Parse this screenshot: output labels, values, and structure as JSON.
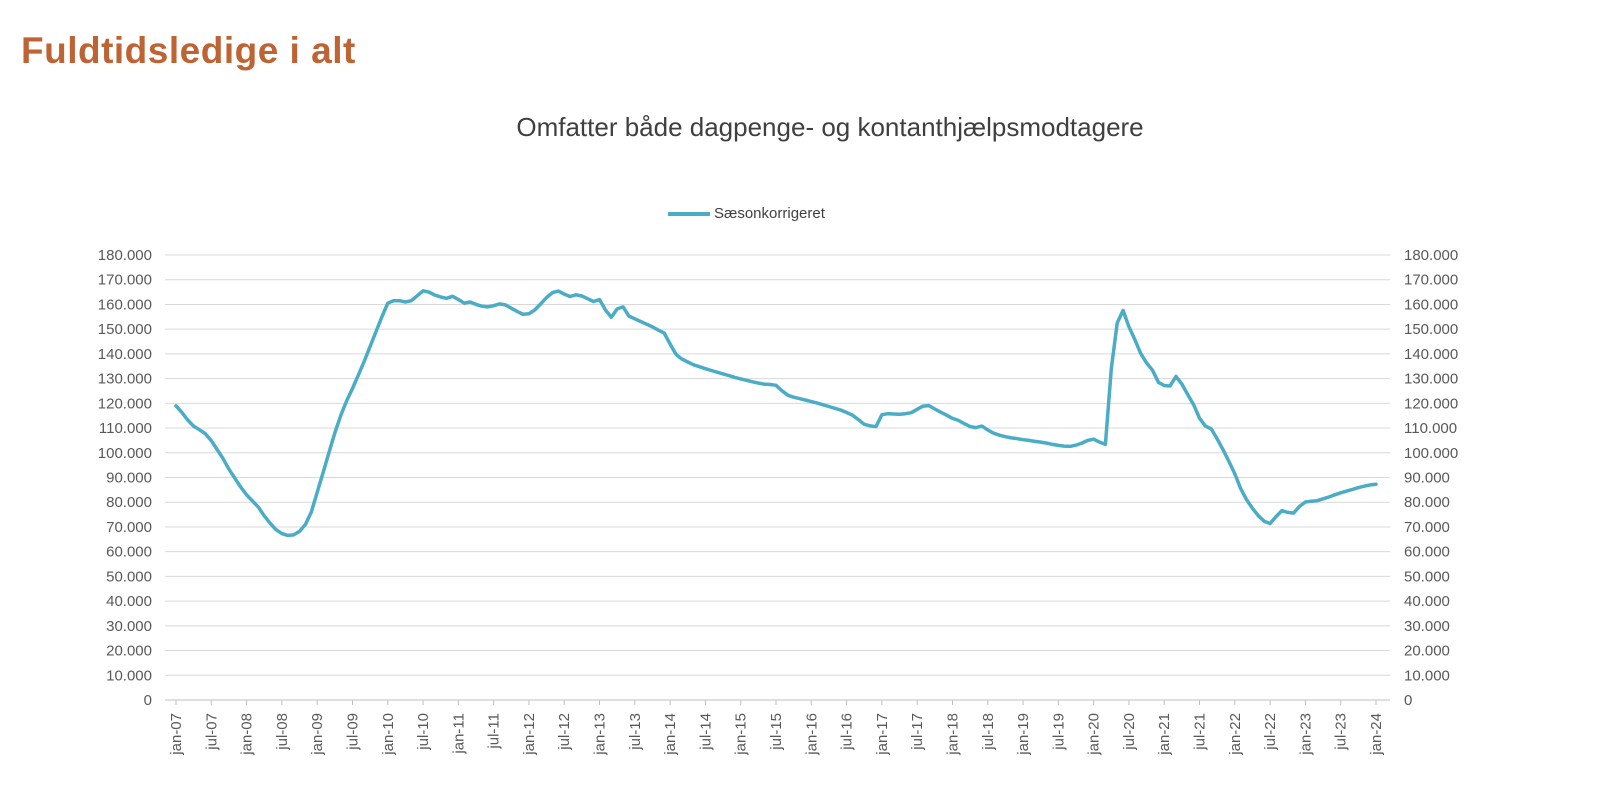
{
  "page_title": "Fuldtidsledige i alt",
  "chart": {
    "subtitle": "Omfatter både dagpenge- og kontanthjælpsmodtagere",
    "legend": {
      "label": "Sæsonkorrigeret",
      "color": "#4BACC6"
    }
  },
  "colors": {
    "title": "#BE6434",
    "subtitle_text": "#3f3f3f",
    "axis_text": "#595959",
    "gridline": "#D9D9D9",
    "axis_line": "#BFBFBF",
    "series_line": "#4BACC6",
    "background": "#FFFFFF"
  },
  "chart_data": {
    "type": "line",
    "title": "Omfatter både dagpenge- og kontanthjælpsmodtagere",
    "xlabel": "",
    "ylabel": "",
    "ylim": [
      0,
      180000
    ],
    "y_step": 10000,
    "y_label_format": "danish-thousands-dot",
    "grid": "horizontal",
    "legend_position": "top-center",
    "x_start": "jan-07",
    "x_end": "jan-24",
    "x_frequency": "monthly",
    "x_tick_interval_months": 6,
    "x_tick_labels": [
      "jan-07",
      "jul-07",
      "jan-08",
      "jul-08",
      "jan-09",
      "jul-09",
      "jan-10",
      "jul-10",
      "jan-11",
      "jul-11",
      "jan-12",
      "jul-12",
      "jan-13",
      "jul-13",
      "jan-14",
      "jul-14",
      "jan-15",
      "jul-15",
      "jan-16",
      "jul-16",
      "jan-17",
      "jul-17",
      "jan-18",
      "jul-18",
      "jan-19",
      "jul-19",
      "jan-20",
      "jul-20",
      "jan-21",
      "jul-21",
      "jan-22",
      "jul-22",
      "jan-23",
      "jul-23",
      "jan-24"
    ],
    "series": [
      {
        "name": "Sæsonkorrigeret",
        "color": "#4BACC6",
        "values": [
          119000,
          116300,
          113200,
          110800,
          109300,
          107700,
          104900,
          101300,
          97600,
          93400,
          89700,
          86100,
          83000,
          80500,
          78000,
          74500,
          71500,
          68900,
          67300,
          66600,
          66800,
          68200,
          71000,
          76000,
          84000,
          92000,
          100000,
          108000,
          115000,
          121000,
          126000,
          131500,
          137000,
          143000,
          149000,
          155000,
          160500,
          161500,
          161500,
          161000,
          161500,
          163500,
          165500,
          165000,
          163800,
          163000,
          162500,
          163300,
          162000,
          160500,
          161000,
          160000,
          159300,
          159000,
          159500,
          160200,
          159800,
          158500,
          157200,
          156000,
          156200,
          157800,
          160200,
          162800,
          164800,
          165400,
          164200,
          163200,
          163900,
          163400,
          162300,
          161200,
          162000,
          157800,
          154800,
          158200,
          159000,
          155300,
          154200,
          153100,
          152000,
          150900,
          149600,
          148400,
          144000,
          139800,
          137900,
          136700,
          135600,
          134800,
          134000,
          133300,
          132600,
          131900,
          131200,
          130500,
          129900,
          129300,
          128700,
          128200,
          127800,
          127600,
          127300,
          125100,
          123300,
          122500,
          121900,
          121300,
          120700,
          120100,
          119400,
          118700,
          118000,
          117300,
          116300,
          115200,
          113400,
          111500,
          110900,
          110600,
          115400,
          115800,
          115700,
          115600,
          115800,
          116200,
          117600,
          118900,
          119100,
          117700,
          116400,
          115200,
          113900,
          113100,
          111800,
          110600,
          110200,
          110800,
          109200,
          107900,
          107100,
          106500,
          106000,
          105700,
          105300,
          105000,
          104600,
          104300,
          103900,
          103400,
          103000,
          102700,
          102600,
          103100,
          103900,
          105000,
          105500,
          104300,
          103400,
          134000,
          152500,
          157600,
          151000,
          145800,
          140200,
          136300,
          133400,
          128500,
          127200,
          127000,
          130900,
          127800,
          123500,
          119500,
          114000,
          110800,
          109600,
          105600,
          101200,
          96500,
          91500,
          85500,
          81000,
          77500,
          74500,
          72300,
          71400,
          74200,
          76600,
          75900,
          75600,
          78300,
          80100,
          80400,
          80600,
          81400,
          82100,
          83000,
          83800,
          84500,
          85200,
          85900,
          86500,
          87000,
          87300
        ]
      }
    ]
  }
}
